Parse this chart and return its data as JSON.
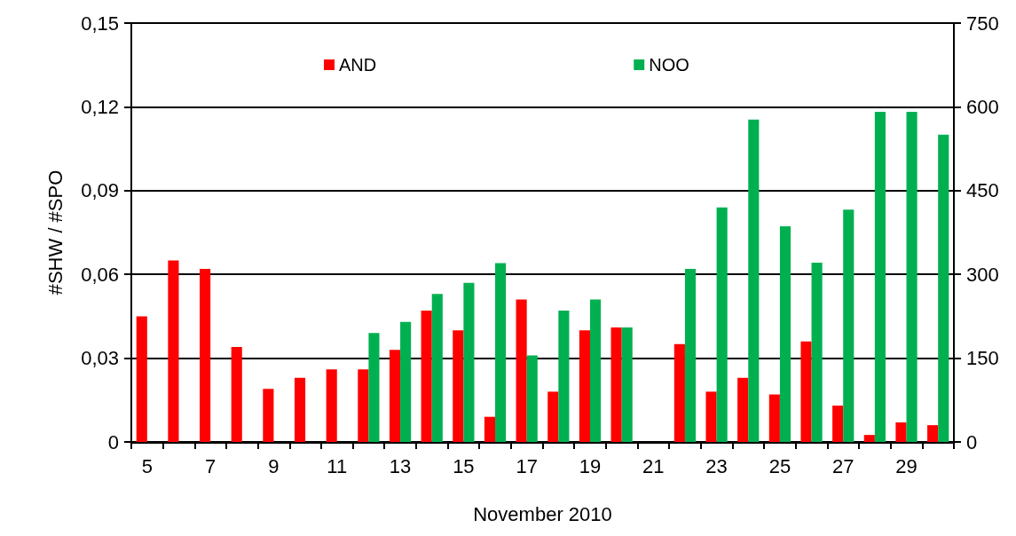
{
  "chart_data": {
    "type": "bar",
    "xlabel": "November 2010",
    "ylabel": "#SHW / #SPO",
    "categories": [
      "5",
      null,
      "7",
      null,
      "9",
      null,
      "11",
      null,
      "13",
      null,
      "15",
      null,
      "17",
      null,
      "19",
      null,
      "21",
      null,
      "23",
      null,
      "25",
      null,
      "27",
      null,
      "29",
      null
    ],
    "series": [
      {
        "name": "AND",
        "color": "#ff0000",
        "values": [
          0.045,
          0.065,
          0.062,
          0.034,
          0.019,
          0.023,
          0.026,
          0.026,
          0.033,
          0.047,
          0.04,
          0.009,
          0.051,
          0.018,
          0.04,
          0.041,
          0,
          0.035,
          0.018,
          0.023,
          0.017,
          0.036,
          0.013,
          0.0025,
          0.007,
          0.006
        ]
      },
      {
        "name": "NOO",
        "color": "#00b050",
        "axis": "y2",
        "values": [
          0,
          0,
          0,
          0,
          0,
          0,
          0,
          195,
          215,
          265,
          285,
          320,
          155,
          235,
          255,
          205,
          0,
          310,
          420,
          577,
          386,
          321,
          416,
          591,
          591,
          550
        ]
      }
    ],
    "ylim": [
      0,
      0.15
    ],
    "yticks": [
      {
        "value": 0,
        "label": "0"
      },
      {
        "value": 0.03,
        "label": "0,03"
      },
      {
        "value": 0.06,
        "label": "0,06"
      },
      {
        "value": 0.09,
        "label": "0,09"
      },
      {
        "value": 0.12,
        "label": "0,12"
      },
      {
        "value": 0.15,
        "label": "0,15"
      }
    ],
    "y2lim": [
      0,
      750
    ],
    "y2ticks": [
      0,
      150,
      300,
      450,
      600,
      750
    ],
    "grid": "y",
    "legend": "top"
  }
}
